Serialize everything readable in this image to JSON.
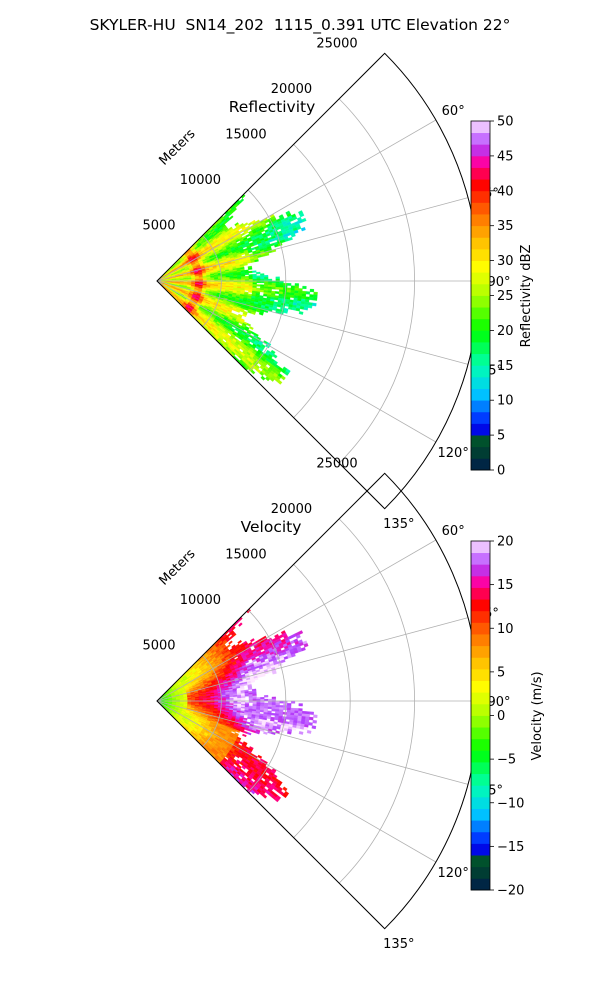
{
  "figure": {
    "suptitle": "SKYLER-HU  SN14_202  1115_0.391 UTC Elevation 22°"
  },
  "chart_data": [
    {
      "type": "polar-sector",
      "title": "Reflectivity",
      "radius_axis_label": "Meters",
      "radial_ticks": [
        5000,
        10000,
        15000,
        20000,
        25000
      ],
      "radial_tick_labels": [
        "5000",
        "10000",
        "15000",
        "20000",
        "25000"
      ],
      "radial_max": 25000,
      "theta_range_deg": [
        45,
        135
      ],
      "theta_ticks": [
        60,
        75,
        90,
        105,
        120,
        135
      ],
      "theta_tick_labels": [
        "60°",
        "75°",
        "90°",
        "105°",
        "120°",
        "135°"
      ],
      "grid": true,
      "data_extent_m": 12500,
      "colorbar": {
        "label": "Reflectivity dBZ",
        "min": 0,
        "max": 50,
        "ticks": [
          0,
          5,
          10,
          15,
          20,
          25,
          30,
          35,
          40,
          45,
          50
        ],
        "tick_labels": [
          "0",
          "5",
          "10",
          "15",
          "20",
          "25",
          "30",
          "35",
          "40",
          "45",
          "50"
        ]
      }
    },
    {
      "type": "polar-sector",
      "title": "Velocity",
      "radius_axis_label": "Meters",
      "radial_ticks": [
        5000,
        10000,
        15000,
        20000,
        25000
      ],
      "radial_tick_labels": [
        "5000",
        "10000",
        "15000",
        "20000",
        "25000"
      ],
      "radial_max": 25000,
      "theta_range_deg": [
        45,
        135
      ],
      "theta_ticks": [
        60,
        75,
        90,
        105,
        120,
        135
      ],
      "theta_tick_labels": [
        "60°",
        "75°",
        "90°",
        "105°",
        "120°",
        "135°"
      ],
      "grid": true,
      "data_extent_m": 12500,
      "colorbar": {
        "label": "Velocity (m/s)",
        "min": -20,
        "max": 20,
        "ticks": [
          -20,
          -15,
          -10,
          -5,
          0,
          5,
          10,
          15,
          20
        ],
        "tick_labels": [
          "−20",
          "−15",
          "−10",
          "−5",
          "0",
          "5",
          "10",
          "15",
          "20"
        ]
      }
    }
  ]
}
